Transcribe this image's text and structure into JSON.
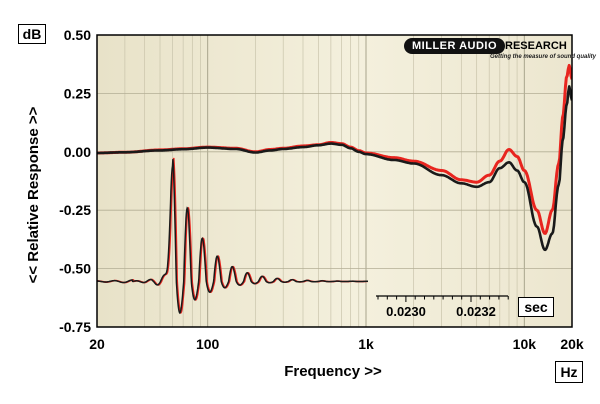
{
  "chart_data": {
    "type": "line",
    "xscale": "log",
    "ylabel": "<< Relative Response >>",
    "xlabel": "Frequency >>",
    "y_unit": "dB",
    "x_unit": "Hz",
    "xlim": [
      20,
      20000
    ],
    "ylim": [
      -0.75,
      0.5
    ],
    "grid": true,
    "x_ticks": [
      20,
      100,
      1000,
      10000,
      20000
    ],
    "x_tick_labels": [
      "20",
      "100",
      "1k",
      "10k",
      "20k"
    ],
    "y_ticks": [
      0.5,
      0.25,
      0.0,
      -0.25,
      -0.5,
      -0.75
    ],
    "y_tick_labels": [
      "0.50",
      "0.25",
      "0.00",
      "-0.25",
      "-0.50",
      "-0.75"
    ],
    "series": [
      {
        "color": "#e8251f",
        "points": [
          [
            20,
            -0.005
          ],
          [
            30,
            -0.002
          ],
          [
            50,
            0.008
          ],
          [
            70,
            0.013
          ],
          [
            100,
            0.02
          ],
          [
            150,
            0.015
          ],
          [
            200,
            0.0
          ],
          [
            250,
            0.01
          ],
          [
            300,
            0.015
          ],
          [
            400,
            0.025
          ],
          [
            500,
            0.03
          ],
          [
            600,
            0.04
          ],
          [
            700,
            0.035
          ],
          [
            800,
            0.02
          ],
          [
            900,
            0.005
          ],
          [
            1000,
            -0.005
          ],
          [
            1500,
            -0.025
          ],
          [
            2000,
            -0.04
          ],
          [
            3000,
            -0.08
          ],
          [
            4000,
            -0.12
          ],
          [
            5000,
            -0.13
          ],
          [
            6000,
            -0.1
          ],
          [
            7000,
            -0.04
          ],
          [
            8000,
            0.01
          ],
          [
            9000,
            -0.02
          ],
          [
            10000,
            -0.08
          ],
          [
            12000,
            -0.25
          ],
          [
            13500,
            -0.35
          ],
          [
            15000,
            -0.25
          ],
          [
            16500,
            -0.05
          ],
          [
            17500,
            0.15
          ],
          [
            18500,
            0.32
          ],
          [
            19200,
            0.37
          ],
          [
            20000,
            0.31
          ]
        ]
      },
      {
        "color": "#1a1a1a",
        "points": [
          [
            20,
            -0.005
          ],
          [
            30,
            -0.002
          ],
          [
            50,
            0.006
          ],
          [
            70,
            0.011
          ],
          [
            100,
            0.018
          ],
          [
            150,
            0.012
          ],
          [
            200,
            -0.003
          ],
          [
            250,
            0.006
          ],
          [
            300,
            0.012
          ],
          [
            400,
            0.02
          ],
          [
            500,
            0.028
          ],
          [
            600,
            0.035
          ],
          [
            700,
            0.03
          ],
          [
            800,
            0.015
          ],
          [
            900,
            0.0
          ],
          [
            1000,
            -0.01
          ],
          [
            1500,
            -0.035
          ],
          [
            2000,
            -0.05
          ],
          [
            3000,
            -0.1
          ],
          [
            4000,
            -0.135
          ],
          [
            5000,
            -0.15
          ],
          [
            6000,
            -0.13
          ],
          [
            7000,
            -0.07
          ],
          [
            8000,
            -0.045
          ],
          [
            9000,
            -0.08
          ],
          [
            10000,
            -0.13
          ],
          [
            12000,
            -0.32
          ],
          [
            13500,
            -0.42
          ],
          [
            15000,
            -0.35
          ],
          [
            16500,
            -0.14
          ],
          [
            17500,
            0.05
          ],
          [
            18500,
            0.2
          ],
          [
            19200,
            0.28
          ],
          [
            20000,
            0.22
          ]
        ]
      }
    ],
    "inset": {
      "type": "line",
      "x_unit": "sec",
      "x_tick_labels": [
        "0.0230",
        "0.0232"
      ],
      "baseline_db": -0.555,
      "impulse_peak_frequency_hz": 60,
      "impulse_peak_db": -0.02,
      "impulse_trough_db": -0.73
    }
  },
  "logo": {
    "brand": "MILLER AUDIO",
    "brand_suffix": "RESEARCH",
    "tagline": "Getting the measure of sound quality"
  }
}
